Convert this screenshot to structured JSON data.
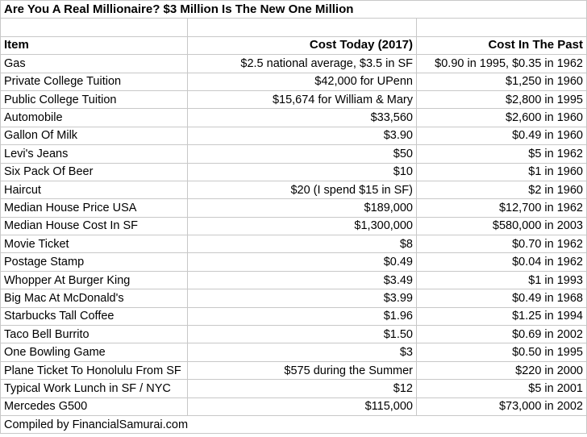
{
  "title": "Are You A Real Millionaire? $3 Million Is The New One Million",
  "headers": [
    "Item",
    "Cost Today (2017)",
    "Cost In The Past"
  ],
  "rows": [
    {
      "item": "Gas",
      "today": "$2.5 national average, $3.5 in SF",
      "past": "$0.90 in 1995, $0.35 in 1962"
    },
    {
      "item": "Private College Tuition",
      "today": "$42,000 for UPenn",
      "past": "$1,250 in 1960"
    },
    {
      "item": "Public College Tuition",
      "today": "$15,674 for William & Mary",
      "past": "$2,800 in 1995"
    },
    {
      "item": "Automobile",
      "today": "$33,560",
      "past": "$2,600 in 1960"
    },
    {
      "item": "Gallon Of Milk",
      "today": "$3.90",
      "past": "$0.49 in 1960"
    },
    {
      "item": "Levi's Jeans",
      "today": "$50",
      "past": "$5 in 1962"
    },
    {
      "item": "Six Pack Of Beer",
      "today": "$10",
      "past": "$1 in 1960"
    },
    {
      "item": "Haircut",
      "today": "$20 (I spend $15 in SF)",
      "past": "$2 in 1960"
    },
    {
      "item": "Median House Price USA",
      "today": "$189,000",
      "past": "$12,700 in 1962"
    },
    {
      "item": "Median House Cost In SF",
      "today": "$1,300,000",
      "past": "$580,000 in 2003"
    },
    {
      "item": "Movie Ticket",
      "today": "$8",
      "past": "$0.70 in 1962"
    },
    {
      "item": "Postage Stamp",
      "today": "$0.49",
      "past": "$0.04 in 1962"
    },
    {
      "item": "Whopper At Burger King",
      "today": "$3.49",
      "past": "$1 in 1993"
    },
    {
      "item": "Big Mac At McDonald's",
      "today": "$3.99",
      "past": "$0.49 in 1968"
    },
    {
      "item": "Starbucks Tall Coffee",
      "today": "$1.96",
      "past": "$1.25 in 1994"
    },
    {
      "item": "Taco Bell Burrito",
      "today": "$1.50",
      "past": "$0.69 in 2002"
    },
    {
      "item": "One Bowling Game",
      "today": "$3",
      "past": "$0.50 in 1995"
    },
    {
      "item": "Plane Ticket To Honolulu From SF",
      "today": "$575 during the Summer",
      "past": "$220 in 2000"
    },
    {
      "item": "Typical Work Lunch in SF / NYC",
      "today": "$12",
      "past": "$5 in 2001"
    },
    {
      "item": "Mercedes G500",
      "today": "$115,000",
      "past": "$73,000 in 2002"
    }
  ],
  "footer": "Compiled by FinancialSamurai.com"
}
